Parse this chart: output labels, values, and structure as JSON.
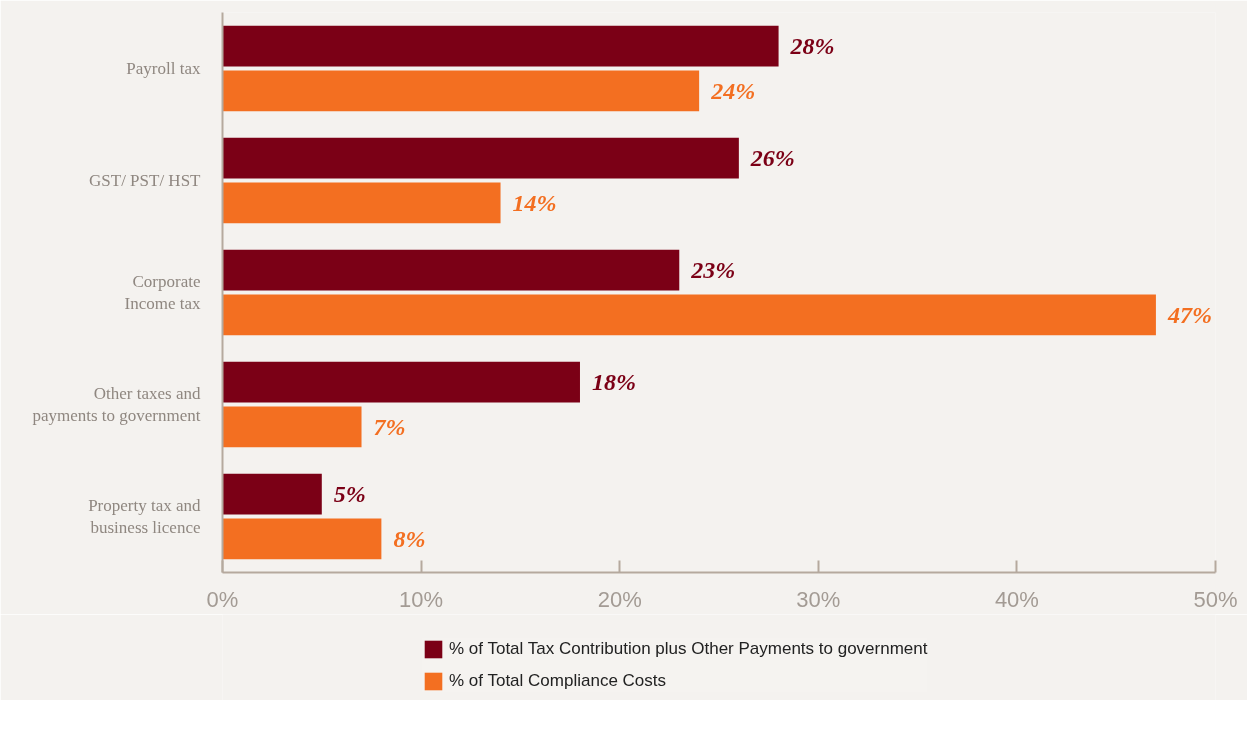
{
  "chart_data": {
    "type": "bar",
    "orientation": "horizontal",
    "categories": [
      "Payroll tax",
      "GST/ PST/ HST",
      "Corporate Income tax",
      "Other taxes and payments to government",
      "Property tax and business licence"
    ],
    "series": [
      {
        "name": "% of Total Tax Contribution plus Other Payments to government",
        "color": "#7b0016",
        "values": [
          28,
          26,
          23,
          18,
          5
        ],
        "value_labels": [
          "28%",
          "26%",
          "23%",
          "18%",
          "5%"
        ]
      },
      {
        "name": "% of Total Compliance Costs",
        "color": "#f36f21",
        "values": [
          24,
          14,
          47,
          7,
          8
        ],
        "value_labels": [
          "24%",
          "14%",
          "47%",
          "7%",
          "8%"
        ]
      }
    ],
    "xlim": [
      0,
      50
    ],
    "xticks": [
      {
        "value": 0,
        "label": "0%"
      },
      {
        "value": 10,
        "label": "10%"
      },
      {
        "value": 20,
        "label": "20%"
      },
      {
        "value": 30,
        "label": "30%"
      },
      {
        "value": 40,
        "label": "40%"
      },
      {
        "value": 50,
        "label": "50%"
      }
    ],
    "grid": false,
    "legend": "bottom"
  }
}
